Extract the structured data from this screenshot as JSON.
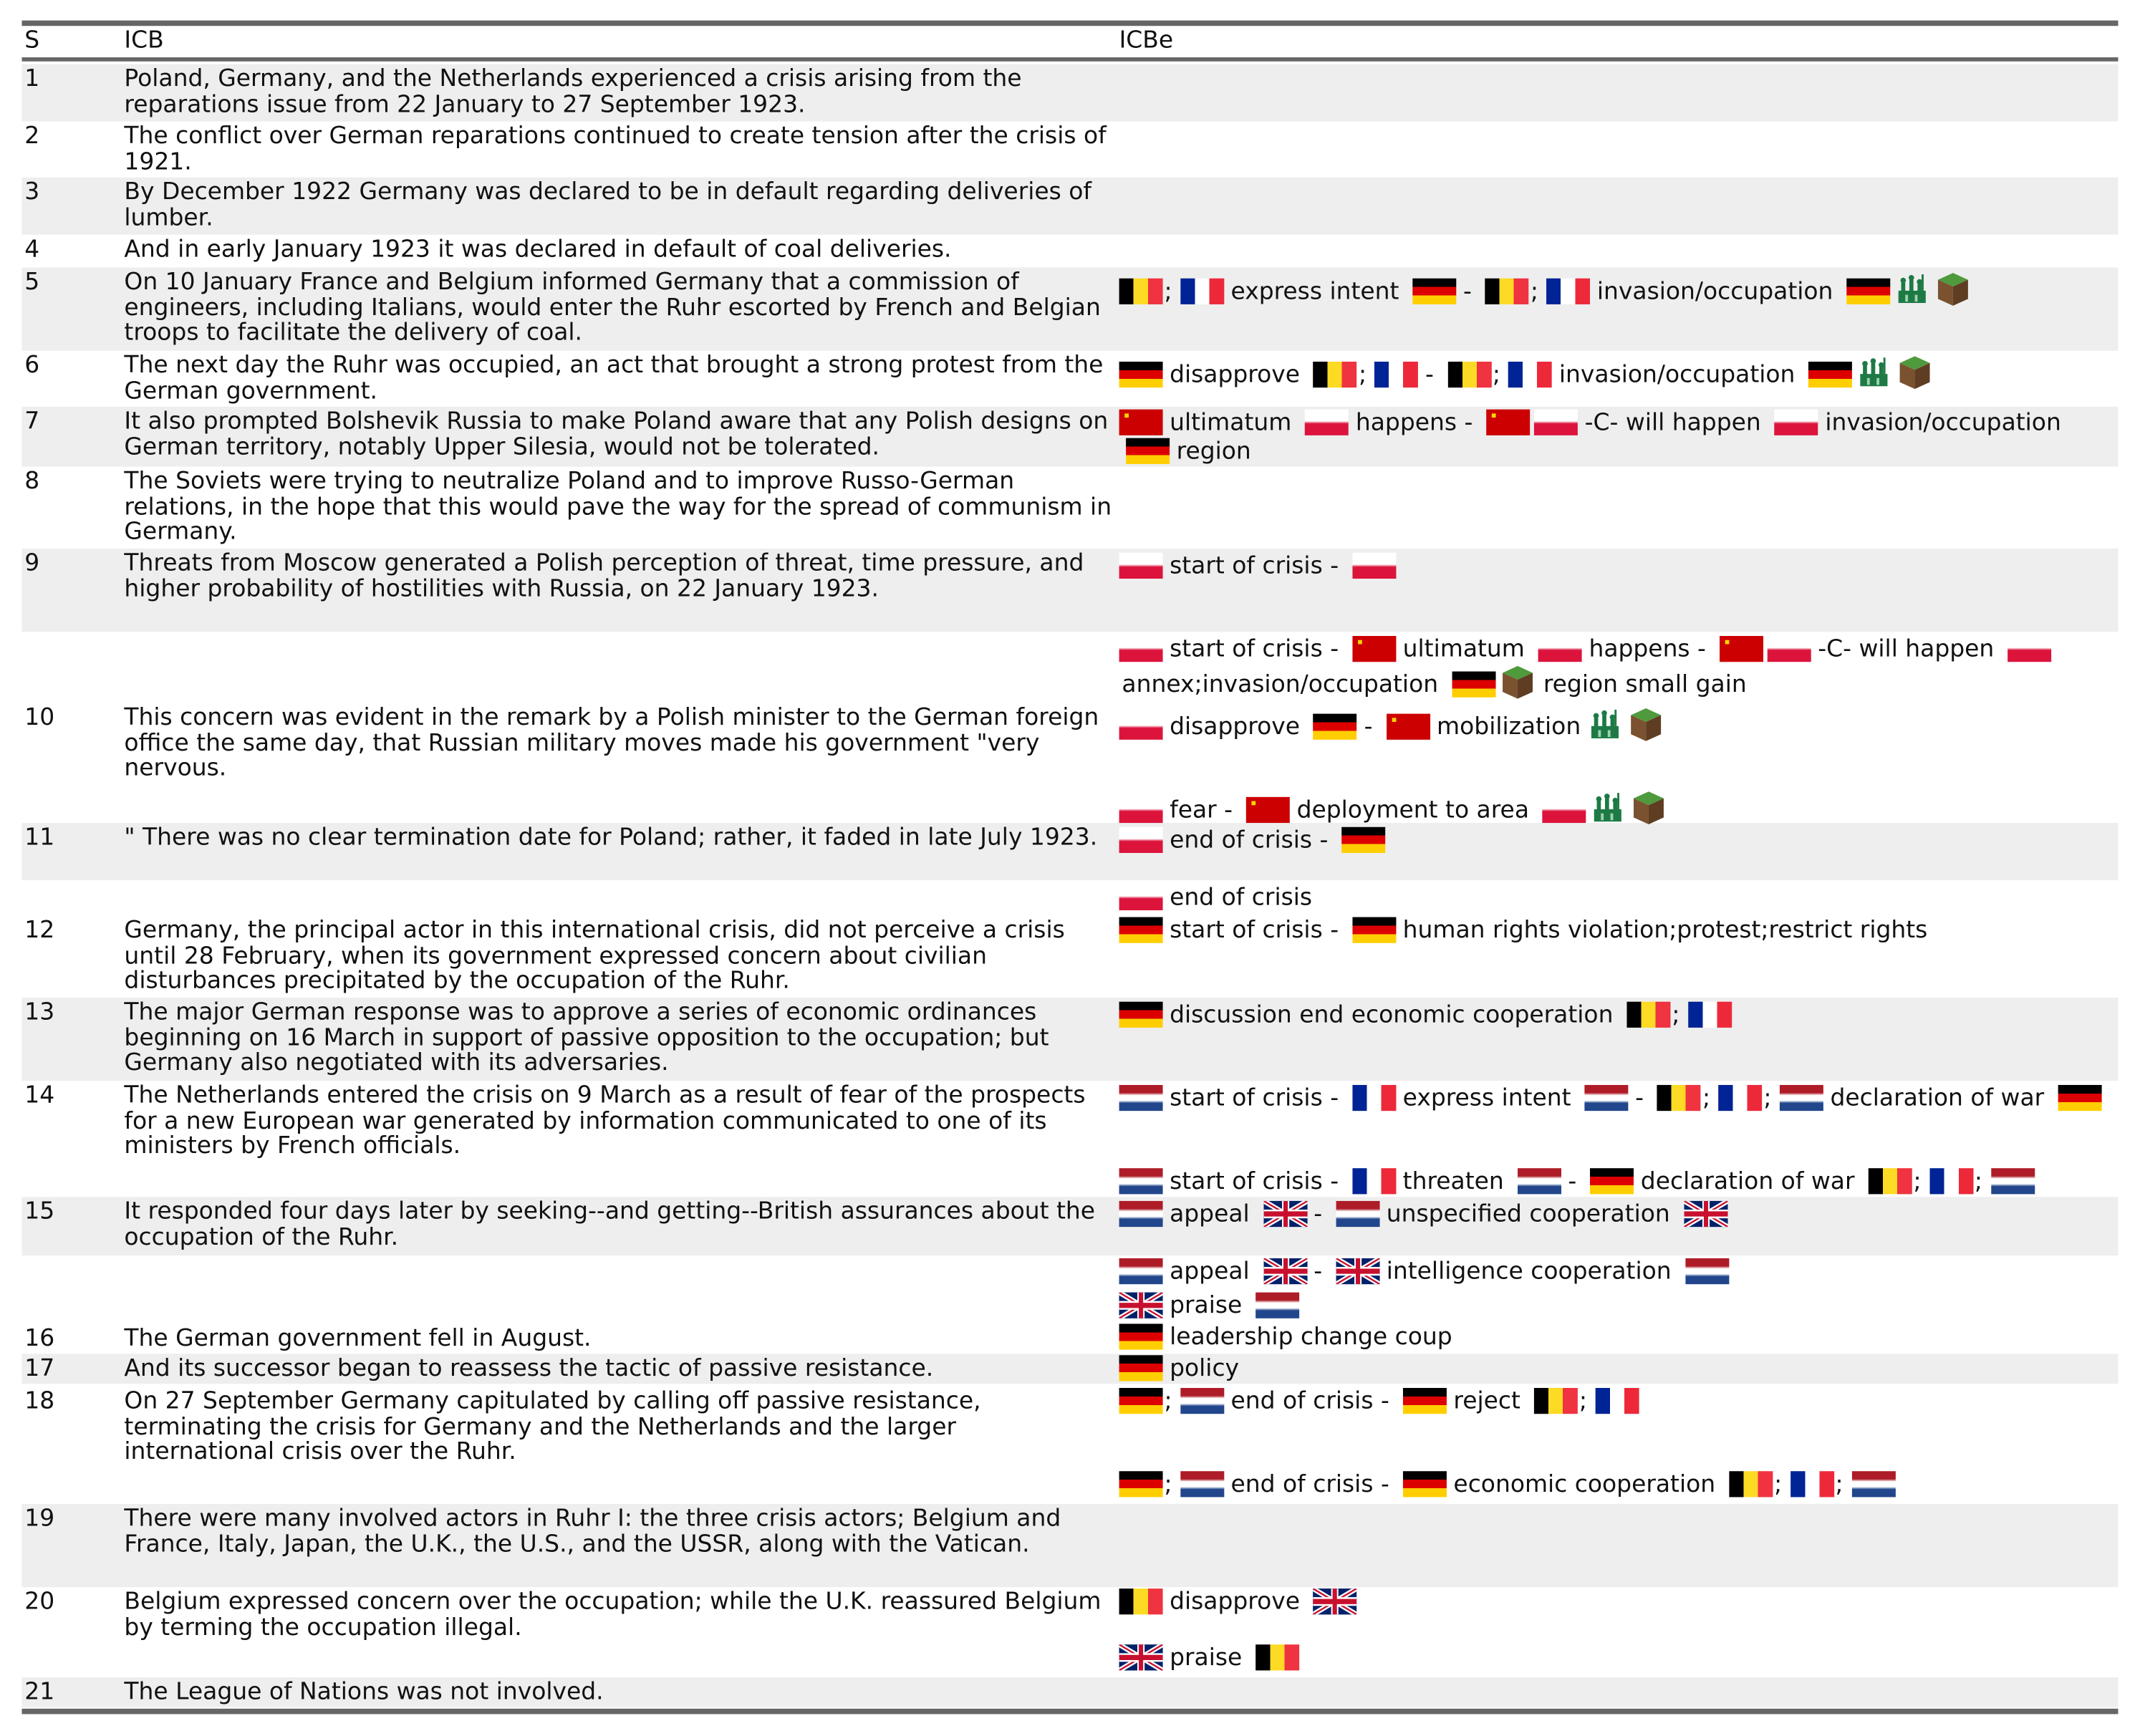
{
  "header": {
    "s": "S",
    "icb": "ICB",
    "icbe": "ICBe"
  },
  "rows": [
    {
      "s": "1",
      "icb": "Poland, Germany, and the Netherlands experienced a crisis arising from the reparations issue from 22 January to 27 September 1923.",
      "events": []
    },
    {
      "s": "2",
      "icb": "The conflict over German reparations continued to create tension after the crisis of 1921.",
      "events": []
    },
    {
      "s": "3",
      "icb": "By December 1922 Germany was declared to be in default regarding deliveries of lumber.",
      "events": []
    },
    {
      "s": "4",
      "icb": "And in early January 1923 it was declared in default of coal deliveries.",
      "events": []
    },
    {
      "s": "5",
      "icb": "On 10 January France and Belgium informed Germany that a commission of engineers, including Italians, would enter the Ruhr escorted by French and Belgian troops to facilitate the delivery of coal.",
      "events": [
        [
          {
            "f": "BE"
          },
          {
            "t": ";"
          },
          {
            "f": "FR"
          },
          {
            "t": "express intent"
          },
          {
            "f": "DE"
          },
          {
            "t": "-"
          },
          {
            "f": "BE"
          },
          {
            "t": ";"
          },
          {
            "f": "FR"
          },
          {
            "t": "invasion/occupation"
          },
          {
            "f": "DE"
          },
          {
            "i": "troops"
          },
          {
            "i": "land"
          }
        ]
      ]
    },
    {
      "s": "6",
      "icb": "The next day the Ruhr was occupied, an act that brought a strong protest from the German government.",
      "events": [
        [
          {
            "f": "DE"
          },
          {
            "t": "disapprove"
          },
          {
            "f": "BE"
          },
          {
            "t": ";"
          },
          {
            "f": "FR"
          },
          {
            "t": "-"
          },
          {
            "f": "BE"
          },
          {
            "t": ";"
          },
          {
            "f": "FR"
          },
          {
            "t": "invasion/occupation"
          },
          {
            "f": "DE"
          },
          {
            "i": "troops"
          },
          {
            "i": "land"
          }
        ]
      ]
    },
    {
      "s": "7",
      "icb": "It also prompted Bolshevik Russia to make Poland aware that any Polish designs on German territory, notably Upper Silesia, would not be tolerated.",
      "events": [
        [
          {
            "f": "SU"
          },
          {
            "t": "ultimatum"
          },
          {
            "f": "PL"
          },
          {
            "t": "happens -"
          },
          {
            "f": "SU"
          },
          {
            "f": "PL"
          },
          {
            "t": "-C- will happen"
          },
          {
            "f": "PL"
          },
          {
            "t": "invasion/occupation"
          },
          {
            "f": "DE"
          },
          {
            "t": "region"
          }
        ]
      ]
    },
    {
      "s": "8",
      "icb": "The Soviets were trying to neutralize Poland and to improve Russo-German relations, in the hope that this would pave the way for the spread of communism in Germany.",
      "events": []
    },
    {
      "s": "9",
      "icb": "Threats from Moscow generated a Polish perception of threat, time pressure, and higher probability of hostilities with Russia, on 22 January 1923.",
      "events": [
        [
          {
            "f": "PL"
          },
          {
            "t": "start of crisis -"
          },
          {
            "f": "PL"
          }
        ]
      ]
    },
    {
      "s": "10",
      "icb": "This concern was evident in the remark by a Polish minister to the German foreign office the same day, that Russian military moves made his government \"very nervous.",
      "events": [
        [
          {
            "f": "PL"
          },
          {
            "t": "start of crisis -"
          },
          {
            "f": "SU"
          },
          {
            "t": "ultimatum"
          },
          {
            "f": "PL"
          },
          {
            "t": "happens -"
          },
          {
            "f": "SU"
          },
          {
            "f": "PL"
          },
          {
            "t": "-C- will happen"
          },
          {
            "f": "PL"
          },
          {
            "t": "annex;invasion/occupation"
          },
          {
            "f": "DE"
          },
          {
            "i": "land"
          },
          {
            "t": "region small gain"
          }
        ],
        [
          {
            "f": "PL"
          },
          {
            "t": "disapprove"
          },
          {
            "f": "DE"
          },
          {
            "t": "-"
          },
          {
            "f": "SU"
          },
          {
            "t": "mobilization"
          },
          {
            "i": "troops"
          },
          {
            "i": "land"
          }
        ],
        [
          {
            "f": "PL"
          },
          {
            "t": "fear -"
          },
          {
            "f": "SU"
          },
          {
            "t": "deployment to area"
          },
          {
            "f": "PL"
          },
          {
            "i": "troops"
          },
          {
            "i": "land"
          }
        ]
      ]
    },
    {
      "s": "11",
      "icb": "\" There was no clear termination date for Poland; rather, it faded in late July 1923.",
      "events": [
        [
          {
            "f": "PL"
          },
          {
            "t": "end of crisis -"
          },
          {
            "f": "DE"
          }
        ]
      ]
    },
    {
      "s": "12",
      "icb": "Germany, the principal actor in this international crisis, did not perceive a crisis until 28 February, when its government expressed concern about civilian disturbances precipitated by the occupation of the Ruhr.",
      "events": [
        [
          {
            "f": "PL"
          },
          {
            "t": "end of crisis"
          }
        ],
        [
          {
            "f": "DE"
          },
          {
            "t": "start of crisis -"
          },
          {
            "f": "DE"
          },
          {
            "t": "human rights violation;protest;restrict rights"
          }
        ]
      ]
    },
    {
      "s": "13",
      "icb": "The major German response was to approve a series of economic ordinances beginning on 16 March in support of passive opposition to the occupation; but Germany also negotiated with its adversaries.",
      "events": [
        [
          {
            "f": "DE"
          },
          {
            "t": "discussion end economic cooperation"
          },
          {
            "f": "BE"
          },
          {
            "t": ";"
          },
          {
            "f": "FR"
          }
        ]
      ]
    },
    {
      "s": "14",
      "icb": "The Netherlands entered the crisis on 9 March as a result of fear of the prospects for a new European war generated by information communicated to one of its ministers by French officials.",
      "events": [
        [
          {
            "f": "NL"
          },
          {
            "t": "start of crisis -"
          },
          {
            "f": "FR"
          },
          {
            "t": "express intent"
          },
          {
            "f": "NL"
          },
          {
            "t": "-"
          },
          {
            "f": "BE"
          },
          {
            "t": ";"
          },
          {
            "f": "FR"
          },
          {
            "t": ";"
          },
          {
            "f": "NL"
          },
          {
            "t": "declaration of war"
          },
          {
            "f": "DE"
          }
        ],
        [
          {
            "f": "NL"
          },
          {
            "t": "start of crisis -"
          },
          {
            "f": "FR"
          },
          {
            "t": "threaten"
          },
          {
            "f": "NL"
          },
          {
            "t": "-"
          },
          {
            "f": "DE"
          },
          {
            "t": "declaration of war"
          },
          {
            "f": "BE"
          },
          {
            "t": ";"
          },
          {
            "f": "FR"
          },
          {
            "t": ";"
          },
          {
            "f": "NL"
          }
        ]
      ]
    },
    {
      "s": "15",
      "icb": "It responded four days later by seeking--and getting--British assurances about the occupation of the Ruhr.",
      "events": [
        [
          {
            "f": "NL"
          },
          {
            "t": "appeal"
          },
          {
            "f": "GB"
          },
          {
            "t": "-"
          },
          {
            "f": "NL"
          },
          {
            "t": "unspecified cooperation"
          },
          {
            "f": "GB"
          }
        ],
        [
          {
            "f": "NL"
          },
          {
            "t": "appeal"
          },
          {
            "f": "GB"
          },
          {
            "t": "-"
          },
          {
            "f": "GB"
          },
          {
            "t": "intelligence cooperation"
          },
          {
            "f": "NL"
          }
        ],
        [
          {
            "f": "GB"
          },
          {
            "t": "praise"
          },
          {
            "f": "NL"
          }
        ]
      ]
    },
    {
      "s": "16",
      "icb": "The German government fell in August.",
      "events": [
        [
          {
            "f": "DE"
          },
          {
            "t": "leadership change coup"
          }
        ]
      ]
    },
    {
      "s": "17",
      "icb": "And its successor began to reassess the tactic of passive resistance.",
      "events": [
        [
          {
            "f": "DE"
          },
          {
            "t": "policy"
          }
        ]
      ]
    },
    {
      "s": "18",
      "icb": "On 27 September Germany capitulated by calling off passive resistance, terminating the crisis for Germany and the Netherlands and the larger international crisis over the Ruhr.",
      "events": [
        [
          {
            "f": "DE"
          },
          {
            "t": ";"
          },
          {
            "f": "NL"
          },
          {
            "t": "end of crisis -"
          },
          {
            "f": "DE"
          },
          {
            "t": "reject"
          },
          {
            "f": "BE"
          },
          {
            "t": ";"
          },
          {
            "f": "FR"
          }
        ],
        [
          {
            "f": "DE"
          },
          {
            "t": ";"
          },
          {
            "f": "NL"
          },
          {
            "t": "end of crisis -"
          },
          {
            "f": "DE"
          },
          {
            "t": "economic cooperation"
          },
          {
            "f": "BE"
          },
          {
            "t": ";"
          },
          {
            "f": "FR"
          },
          {
            "t": ";"
          },
          {
            "f": "NL"
          }
        ]
      ]
    },
    {
      "s": "19",
      "icb": "There were many involved actors in Ruhr I: the three crisis actors; Belgium and France, Italy, Japan, the U.K., the U.S., and the USSR, along with the Vatican.",
      "events": []
    },
    {
      "s": "20",
      "icb": "Belgium expressed concern over the occupation; while the U.K. reassured Belgium by terming the occupation illegal.",
      "events": [
        [
          {
            "f": "BE"
          },
          {
            "t": "disapprove"
          },
          {
            "f": "GB"
          }
        ],
        [
          {
            "f": "GB"
          },
          {
            "t": "praise"
          },
          {
            "f": "BE"
          }
        ]
      ]
    },
    {
      "s": "21",
      "icb": "The League of Nations was not involved.",
      "events": []
    }
  ],
  "flag_names": {
    "DE": "germany",
    "BE": "belgium",
    "FR": "france",
    "PL": "poland",
    "SU": "ussr",
    "NL": "netherlands",
    "GB": "united-kingdom"
  },
  "colors": {
    "band": "#eeeeee",
    "rule": "#666666"
  }
}
